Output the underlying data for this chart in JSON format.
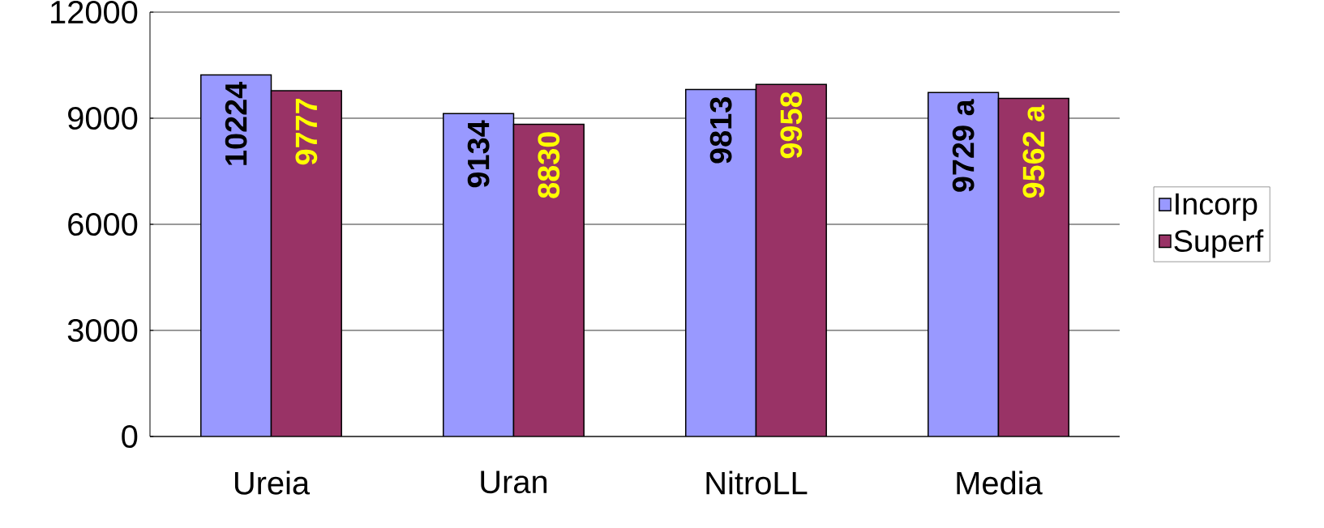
{
  "chart_data": {
    "type": "bar",
    "categories": [
      "Ureia",
      "Uran",
      "NitroLL",
      "Media"
    ],
    "series": [
      {
        "name": "Incorp",
        "color": "#9999ff",
        "values": [
          10224,
          9134,
          9813,
          9729
        ],
        "value_labels": [
          "10224",
          "9134",
          "9813",
          "9729 a"
        ]
      },
      {
        "name": "Superf",
        "color": "#993366",
        "values": [
          9777,
          8830,
          9958,
          9562
        ],
        "value_labels": [
          "9777",
          "8830",
          "9958",
          "9562 a"
        ]
      }
    ],
    "ylim": [
      0,
      12000
    ],
    "yticks": [
      0,
      3000,
      6000,
      9000,
      12000
    ],
    "grid": "y",
    "legend": "right"
  }
}
